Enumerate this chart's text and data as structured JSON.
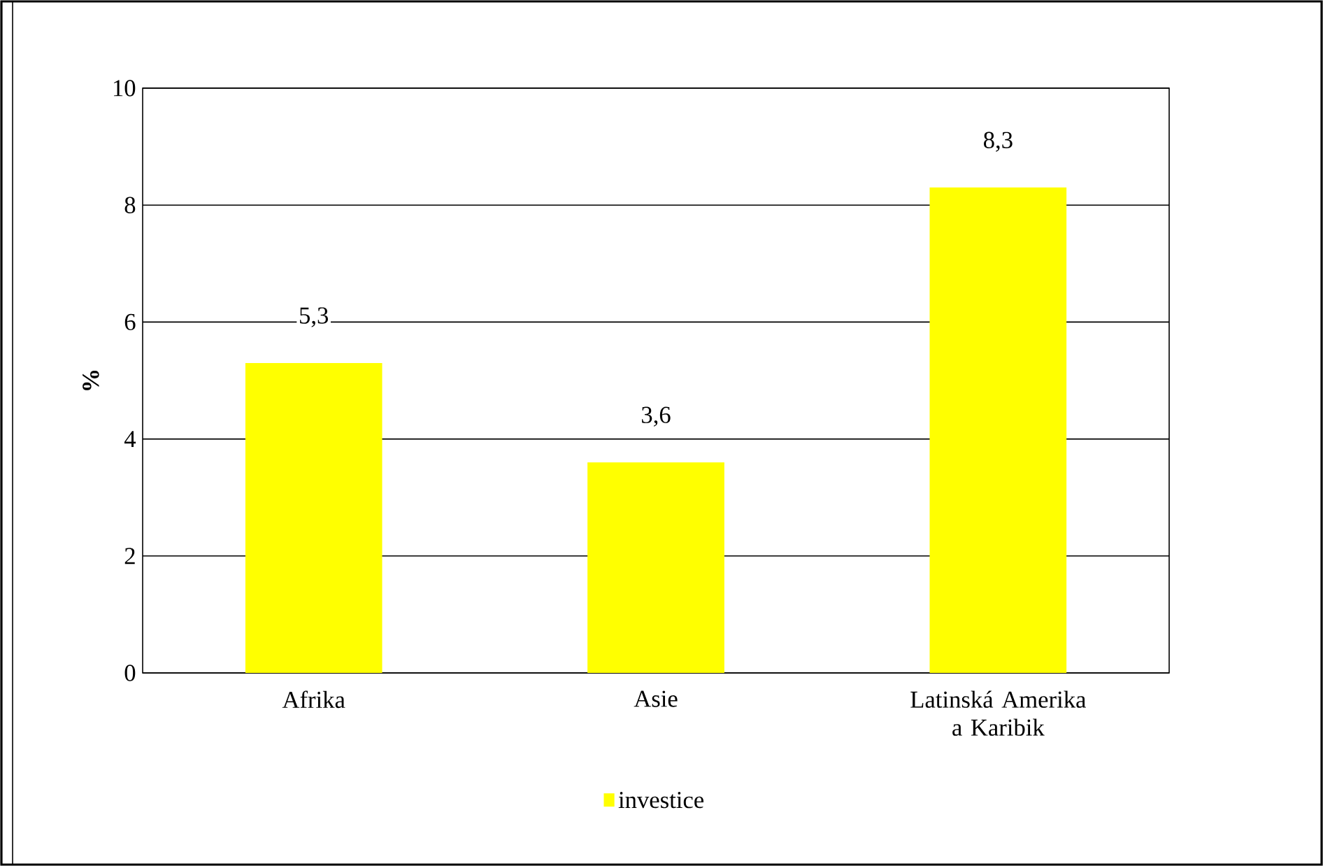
{
  "chart_data": {
    "type": "bar",
    "ylabel": "%",
    "categories": [
      "Afrika",
      "Asie",
      "Latinská Amerika a Karibik"
    ],
    "series": [
      {
        "name": "investice",
        "color": "#ffff00",
        "values": [
          5.3,
          3.6,
          8.3
        ],
        "value_labels": [
          "5,3",
          "3,6",
          "8,3"
        ]
      }
    ],
    "ylim": [
      0,
      10
    ],
    "yticks": [
      0,
      2,
      4,
      6,
      8,
      10
    ],
    "grid": "y",
    "legend": "bottom"
  }
}
